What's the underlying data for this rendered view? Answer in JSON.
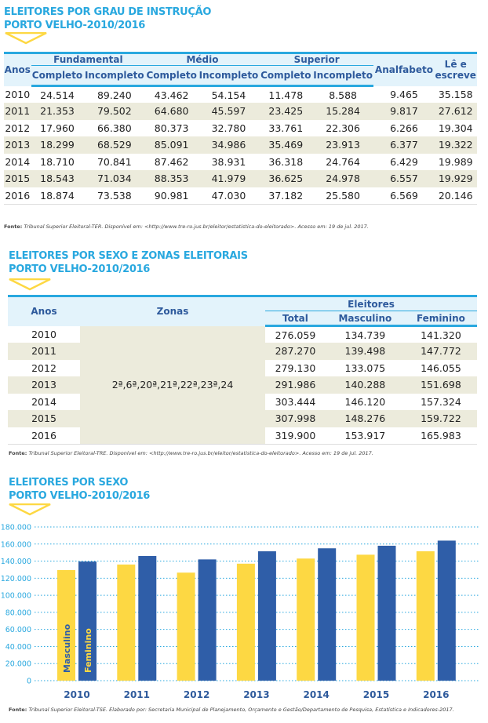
{
  "section1": {
    "title_line1": "ELEITORES POR GRAU DE INSTRUÇÃO",
    "title_line2": "PORTO VELHO-2010/2016",
    "headers": {
      "anos": "Anos",
      "fundamental": "Fundamental",
      "medio": "Médio",
      "superior": "Superior",
      "analfabeto": "Analfabeto",
      "le_escreve_1": "Lê e",
      "le_escreve_2": "escreve",
      "completo": "Completo",
      "incompleto": "Incompleto"
    },
    "rows": [
      [
        "2010",
        "24.514",
        "89.240",
        "43.462",
        "54.154",
        "11.478",
        "8.588",
        "9.465",
        "35.158"
      ],
      [
        "2011",
        "21.353",
        "79.502",
        "64.680",
        "45.597",
        "23.425",
        "15.284",
        "9.817",
        "27.612"
      ],
      [
        "2012",
        "17.960",
        "66.380",
        "80.373",
        "32.780",
        "33.761",
        "22.306",
        "6.266",
        "19.304"
      ],
      [
        "2013",
        "18.299",
        "68.529",
        "85.091",
        "34.986",
        "35.469",
        "23.913",
        "6.377",
        "19.322"
      ],
      [
        "2014",
        "18.710",
        "70.841",
        "87.462",
        "38.931",
        "36.318",
        "24.764",
        "6.429",
        "19.989"
      ],
      [
        "2015",
        "18.543",
        "71.034",
        "88.353",
        "41.979",
        "36.625",
        "24.978",
        "6.557",
        "19.929"
      ],
      [
        "2016",
        "18.874",
        "73.538",
        "90.981",
        "47.030",
        "37.182",
        "25.580",
        "6.569",
        "20.146"
      ]
    ],
    "source_label": "Fonte:",
    "source_text": " Tribunal Superior Eleitoral-TER. Disponível em: <http://www.tre-ro.jus.br/eleitor/estatistica-do-eleitorado>. Acesso em: 19 de jul. 2017."
  },
  "section2": {
    "title_line1": "ELEITORES POR SEXO E ZONAS ELEITORAIS",
    "title_line2": "PORTO VELHO-2010/2016",
    "headers": {
      "anos": "Anos",
      "zonas": "Zonas",
      "eleitores": "Eleitores",
      "total": "Total",
      "masculino": "Masculino",
      "feminino": "Feminino"
    },
    "zonas_value": "2ª,6ª,20ª,21ª,22ª,23ª,24",
    "rows": [
      [
        "2010",
        "276.059",
        "134.739",
        "141.320"
      ],
      [
        "2011",
        "287.270",
        "139.498",
        "147.772"
      ],
      [
        "2012",
        "279.130",
        "133.075",
        "146.055"
      ],
      [
        "2013",
        "291.986",
        "140.288",
        "151.698"
      ],
      [
        "2014",
        "303.444",
        "146.120",
        "157.324"
      ],
      [
        "2015",
        "307.998",
        "148.276",
        "159.722"
      ],
      [
        "2016",
        "319.900",
        "153.917",
        "165.983"
      ]
    ],
    "source_label": "Fonte:",
    "source_text": " Tribunal Superior Eleitoral-TRE. Disponível em: <http://www.tre-ro.jus.br/eleitor/estatistica-do-eleitorado>. Acesso em: 19 de jul. 2017."
  },
  "section3": {
    "title_line1": "ELEITORES POR SEXO",
    "title_line2": "PORTO VELHO-2010/2016",
    "source_label": "Fonte:",
    "source_text": " Tribunal Superior Eleitoral-TSE. Elaborado por: Secretaria Municipal de Planejamento, Orçamento e Gestão/Departamento de Pesquisa, Estatística e Indicadores-2017."
  },
  "colors": {
    "title": "#29a8df",
    "header_text": "#2e5a9c",
    "header_bg": "#e3f3fb",
    "stripe": "#ecebdc",
    "masculino": "#fdd843",
    "feminino": "#2f5ea8",
    "triangle": "#fdd843"
  },
  "chart_data": {
    "type": "bar",
    "categories": [
      "2010",
      "2011",
      "2012",
      "2013",
      "2014",
      "2015",
      "2016"
    ],
    "series": [
      {
        "name": "Masculino",
        "values": [
          129500,
          136000,
          126500,
          137000,
          143000,
          147500,
          151500
        ]
      },
      {
        "name": "Feminino",
        "values": [
          139500,
          146000,
          142000,
          151500,
          155000,
          158000,
          164000
        ]
      }
    ],
    "ylim": [
      0,
      180000
    ],
    "yticks": [
      "0",
      "20.000",
      "40.000",
      "60.000",
      "80.000",
      "100.000",
      "120.000",
      "140.000",
      "160.000",
      "180.000"
    ],
    "grid": true,
    "legend": "inside-first-bars"
  }
}
